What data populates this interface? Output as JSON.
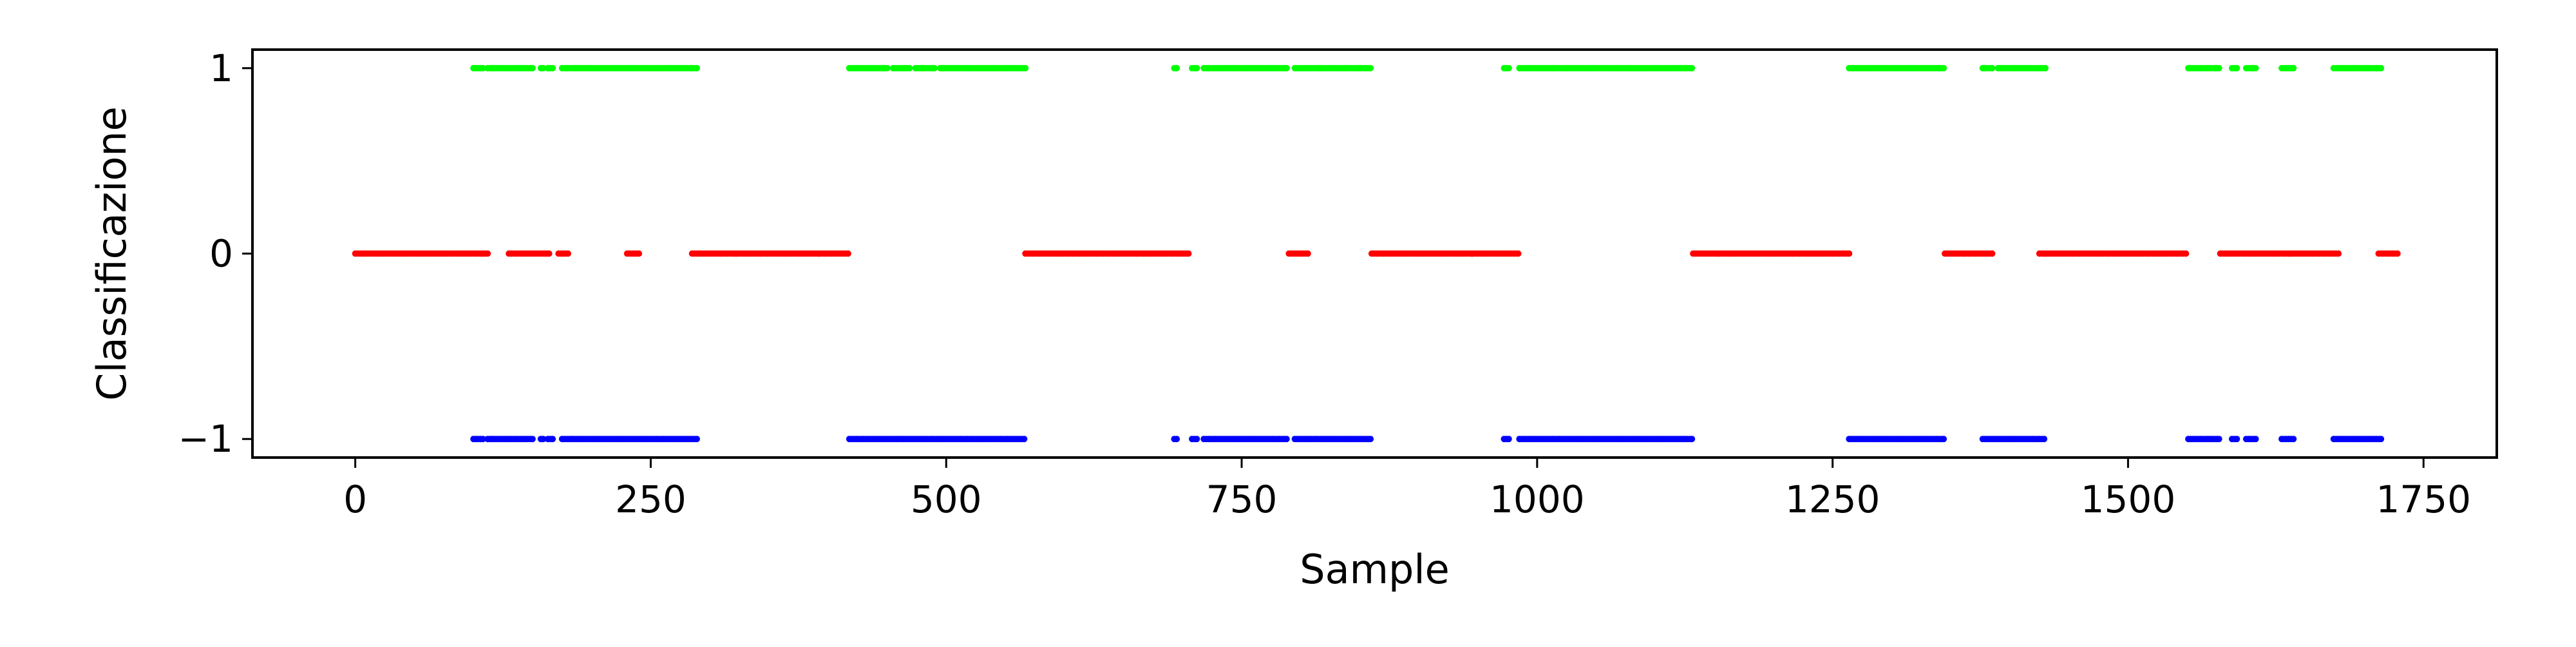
{
  "chart_data": {
    "type": "scatter",
    "title": "",
    "xlabel": "Sample",
    "ylabel": "Classificazione",
    "xlim": [
      -87,
      1812
    ],
    "ylim": [
      -1.1,
      1.1
    ],
    "xticks": [
      0,
      250,
      500,
      750,
      1000,
      1250,
      1500,
      1750
    ],
    "xtick_labels": [
      "0",
      "250",
      "500",
      "750",
      "1000",
      "1250",
      "1500",
      "1750"
    ],
    "yticks": [
      -1,
      0,
      1
    ],
    "ytick_labels": [
      "−1",
      "0",
      "1"
    ],
    "grid": false,
    "legend": "none",
    "series": [
      {
        "color": "#00ff00",
        "y": 1,
        "runs": [
          [
            100,
            108
          ],
          [
            112,
            150
          ],
          [
            157,
            160
          ],
          [
            163,
            168
          ],
          [
            175,
            290
          ],
          [
            418,
            450
          ],
          [
            455,
            470
          ],
          [
            474,
            490
          ],
          [
            495,
            567
          ],
          [
            693,
            696
          ],
          [
            708,
            712
          ],
          [
            718,
            789
          ],
          [
            795,
            860
          ],
          [
            972,
            976
          ],
          [
            985,
            1132
          ],
          [
            1264,
            1345
          ],
          [
            1377,
            1385
          ],
          [
            1390,
            1430
          ],
          [
            1551,
            1578
          ],
          [
            1588,
            1592
          ],
          [
            1600,
            1608
          ],
          [
            1630,
            1640
          ],
          [
            1674,
            1715
          ]
        ]
      },
      {
        "color": "#ff0000",
        "y": 0,
        "runs": [
          [
            0,
            112
          ],
          [
            130,
            165
          ],
          [
            172,
            180
          ],
          [
            230,
            240
          ],
          [
            285,
            418
          ],
          [
            567,
            705
          ],
          [
            790,
            806
          ],
          [
            860,
            985
          ],
          [
            1132,
            1264
          ],
          [
            1345,
            1385
          ],
          [
            1425,
            1550
          ],
          [
            1578,
            1618
          ],
          [
            1620,
            1678
          ],
          [
            1712,
            1728
          ]
        ]
      },
      {
        "color": "#0000ff",
        "y": -1,
        "runs": [
          [
            100,
            108
          ],
          [
            112,
            150
          ],
          [
            157,
            160
          ],
          [
            163,
            168
          ],
          [
            175,
            290
          ],
          [
            418,
            567
          ],
          [
            693,
            696
          ],
          [
            708,
            712
          ],
          [
            718,
            789
          ],
          [
            795,
            860
          ],
          [
            972,
            976
          ],
          [
            985,
            1132
          ],
          [
            1264,
            1345
          ],
          [
            1377,
            1430
          ],
          [
            1551,
            1578
          ],
          [
            1588,
            1592
          ],
          [
            1600,
            1608
          ],
          [
            1630,
            1640
          ],
          [
            1674,
            1715
          ]
        ]
      }
    ]
  }
}
